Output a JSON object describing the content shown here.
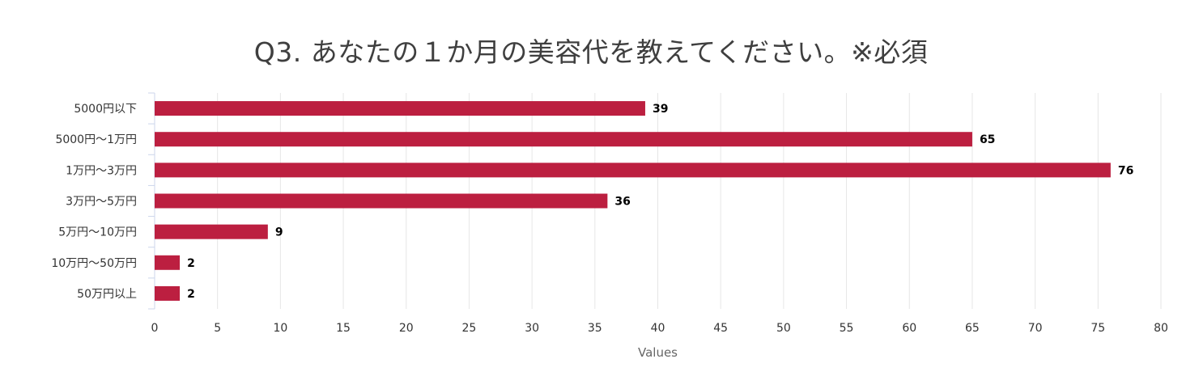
{
  "chart_data": {
    "type": "bar",
    "orientation": "horizontal",
    "title": "Q3. あなたの１か月の美容代を教えてください。※必須",
    "categories": [
      "5000円以下",
      "5000円～1万円",
      "1万円～3万円",
      "3万円～5万円",
      "5万円～10万円",
      "10万円～50万円",
      "50万円以上"
    ],
    "values": [
      39,
      65,
      76,
      36,
      9,
      2,
      2
    ],
    "xlabel": "Values",
    "ylabel": "",
    "xlim": [
      0,
      80
    ],
    "xticks": [
      "0",
      "5",
      "10",
      "15",
      "20",
      "25",
      "30",
      "35",
      "40",
      "45",
      "50",
      "55",
      "60",
      "65",
      "70",
      "75",
      "80"
    ],
    "bar_color": "#bc1f40",
    "grid": true,
    "grid_color": "#e6e6e6",
    "axis_color": "#ccd6eb",
    "data_labels": true
  }
}
